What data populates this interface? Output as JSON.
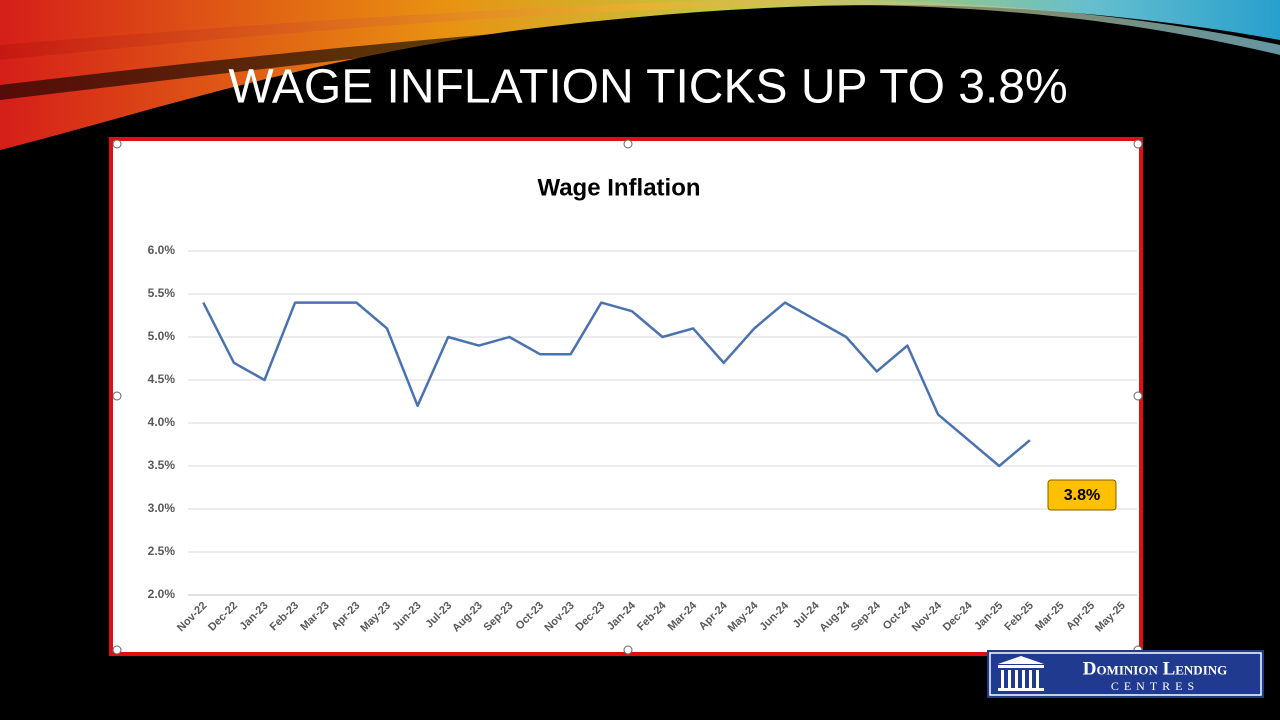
{
  "slide_title": "WAGE INFLATION TICKS UP TO 3.8%",
  "chart_data": {
    "type": "line",
    "title": "Wage Inflation",
    "categories": [
      "Nov-22",
      "Dec-22",
      "Jan-23",
      "Feb-23",
      "Mar-23",
      "Apr-23",
      "May-23",
      "Jun-23",
      "Jul-23",
      "Aug-23",
      "Sep-23",
      "Oct-23",
      "Nov-23",
      "Dec-23",
      "Jan-24",
      "Feb-24",
      "Mar-24",
      "Apr-24",
      "May-24",
      "Jun-24",
      "Jul-24",
      "Aug-24",
      "Sep-24",
      "Oct-24",
      "Nov-24",
      "Dec-24",
      "Jan-25",
      "Feb-25",
      "Mar-25",
      "Apr-25",
      "May-25"
    ],
    "values": [
      5.4,
      4.7,
      4.5,
      5.4,
      5.4,
      5.4,
      5.1,
      4.2,
      5.0,
      4.9,
      5.0,
      4.8,
      4.8,
      5.4,
      5.3,
      5.0,
      5.1,
      4.7,
      5.1,
      5.4,
      5.2,
      5.0,
      4.6,
      4.9,
      4.1,
      3.8,
      3.5,
      3.8,
      null,
      null,
      null
    ],
    "color": "#4a72b0",
    "ylim": [
      2,
      6
    ],
    "yticks": [
      {
        "value": 2,
        "label": "2.0%"
      },
      {
        "value": 2.5,
        "label": "2.5%"
      },
      {
        "value": 3,
        "label": "3.0%"
      },
      {
        "value": 3.5,
        "label": "3.5%"
      },
      {
        "value": 4,
        "label": "4.0%"
      },
      {
        "value": 4.5,
        "label": "4.5%"
      },
      {
        "value": 5,
        "label": "5.0%"
      },
      {
        "value": 5.5,
        "label": "5.5%"
      },
      {
        "value": 6,
        "label": "6.0%"
      }
    ],
    "grid": true,
    "annotation": "3.8%"
  },
  "logo": {
    "name": "Dominion Lending",
    "sub": "CENTRES"
  }
}
